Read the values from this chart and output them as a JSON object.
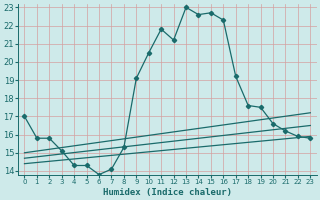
{
  "xlabel": "Humidex (Indice chaleur)",
  "xlim": [
    -0.5,
    23.5
  ],
  "ylim": [
    13.8,
    23.2
  ],
  "yticks": [
    14,
    15,
    16,
    17,
    18,
    19,
    20,
    21,
    22,
    23
  ],
  "xticks": [
    0,
    1,
    2,
    3,
    4,
    5,
    6,
    7,
    8,
    9,
    10,
    11,
    12,
    13,
    14,
    15,
    16,
    17,
    18,
    19,
    20,
    21,
    22,
    23
  ],
  "bg_color": "#ceeaea",
  "grid_color": "#b8d8d8",
  "line_color": "#1a6b6b",
  "line1": {
    "x": [
      0,
      1,
      2,
      3,
      4,
      5,
      6,
      7,
      8,
      9,
      10,
      11,
      12,
      13,
      14,
      15,
      16,
      17,
      18,
      19,
      20,
      21,
      22,
      23
    ],
    "y": [
      17.0,
      15.8,
      15.8,
      15.1,
      14.3,
      14.3,
      13.8,
      14.1,
      15.3,
      19.1,
      20.5,
      21.8,
      21.2,
      23.0,
      22.6,
      22.7,
      22.3,
      19.2,
      17.6,
      17.5,
      16.6,
      16.2,
      15.9,
      15.8
    ]
  },
  "line2": {
    "x": [
      0,
      23
    ],
    "y": [
      15.0,
      17.2
    ]
  },
  "line3": {
    "x": [
      0,
      23
    ],
    "y": [
      14.7,
      16.5
    ]
  },
  "line4": {
    "x": [
      0,
      23
    ],
    "y": [
      14.4,
      15.9
    ]
  }
}
